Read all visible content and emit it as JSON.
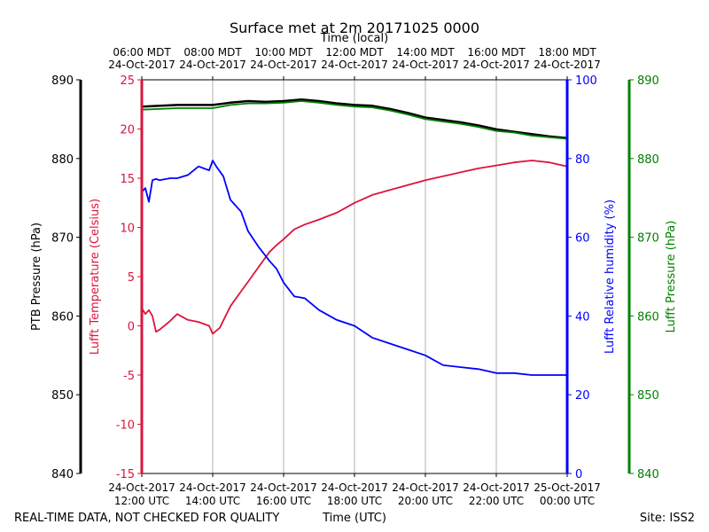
{
  "chart_data": {
    "type": "line",
    "title": "Surface met at 2m 20171025 0000",
    "top_xlabel": "Time (local)",
    "xlabel": "Time (UTC)",
    "footer_left": "REAL-TIME DATA, NOT CHECKED FOR QUALITY",
    "footer_right": "Site: ISS2",
    "x_range_hours_utc": [
      12,
      24
    ],
    "x_ticks_utc": [
      {
        "hour": 12,
        "date": "24-Oct-2017",
        "time": "12:00 UTC"
      },
      {
        "hour": 14,
        "date": "24-Oct-2017",
        "time": "14:00 UTC"
      },
      {
        "hour": 16,
        "date": "24-Oct-2017",
        "time": "16:00 UTC"
      },
      {
        "hour": 18,
        "date": "24-Oct-2017",
        "time": "18:00 UTC"
      },
      {
        "hour": 20,
        "date": "24-Oct-2017",
        "time": "20:00 UTC"
      },
      {
        "hour": 22,
        "date": "24-Oct-2017",
        "time": "22:00 UTC"
      },
      {
        "hour": 24,
        "date": "25-Oct-2017",
        "time": "00:00 UTC"
      }
    ],
    "x_ticks_local": [
      {
        "hour": 12,
        "time": "06:00 MDT",
        "date": "24-Oct-2017"
      },
      {
        "hour": 14,
        "time": "08:00 MDT",
        "date": "24-Oct-2017"
      },
      {
        "hour": 16,
        "time": "10:00 MDT",
        "date": "24-Oct-2017"
      },
      {
        "hour": 18,
        "time": "12:00 MDT",
        "date": "24-Oct-2017"
      },
      {
        "hour": 20,
        "time": "14:00 MDT",
        "date": "24-Oct-2017"
      },
      {
        "hour": 22,
        "time": "16:00 MDT",
        "date": "24-Oct-2017"
      },
      {
        "hour": 24,
        "time": "18:00 MDT",
        "date": "24-Oct-2017"
      }
    ],
    "grid": "vertical",
    "axes": {
      "ptb_pressure": {
        "label": "PTB Pressure (hPa)",
        "range": [
          840,
          890
        ],
        "ticks": [
          840,
          850,
          860,
          870,
          880,
          890
        ],
        "color": "#000000"
      },
      "temperature": {
        "label": "Lufft Temperature (Celsius)",
        "range": [
          -15,
          25
        ],
        "ticks": [
          -15,
          -10,
          -5,
          0,
          5,
          10,
          15,
          20,
          25
        ],
        "color": "#dc143c"
      },
      "humidity": {
        "label": "Lufft Relative humidity (%)",
        "range": [
          0,
          100
        ],
        "ticks": [
          0,
          20,
          40,
          60,
          80,
          100
        ],
        "color": "#0000ff"
      },
      "lufft_pressure": {
        "label": "Lufft Pressure (hPa)",
        "range": [
          840,
          890
        ],
        "ticks": [
          840,
          850,
          860,
          870,
          880,
          890
        ],
        "color": "#008000"
      }
    },
    "series": [
      {
        "axis": "ptb_pressure",
        "color": "#000000",
        "x": [
          12.0,
          13.0,
          14.0,
          14.5,
          15.0,
          15.5,
          16.0,
          16.5,
          17.0,
          17.5,
          18.0,
          18.5,
          19.0,
          19.5,
          20.0,
          20.5,
          21.0,
          21.5,
          22.0,
          22.5,
          23.0,
          23.5,
          24.0
        ],
        "y": [
          886.6,
          886.8,
          886.8,
          887.1,
          887.3,
          887.2,
          887.3,
          887.5,
          887.3,
          887.0,
          886.8,
          886.7,
          886.3,
          885.8,
          885.2,
          884.9,
          884.6,
          884.2,
          883.7,
          883.4,
          883.1,
          882.8,
          882.6
        ]
      },
      {
        "axis": "lufft_pressure",
        "color": "#008000",
        "x": [
          12.0,
          13.0,
          14.0,
          14.5,
          15.0,
          15.5,
          16.0,
          16.5,
          17.0,
          17.5,
          18.0,
          18.5,
          19.0,
          19.5,
          20.0,
          20.5,
          21.0,
          21.5,
          22.0,
          22.5,
          23.0,
          23.5,
          24.0
        ],
        "y": [
          886.2,
          886.4,
          886.4,
          886.8,
          887.0,
          887.0,
          887.1,
          887.3,
          887.1,
          886.8,
          886.6,
          886.5,
          886.1,
          885.6,
          885.0,
          884.7,
          884.4,
          884.0,
          883.5,
          883.3,
          882.9,
          882.7,
          882.5
        ]
      },
      {
        "axis": "temperature",
        "color": "#dc143c",
        "x": [
          12.0,
          12.1,
          12.2,
          12.3,
          12.4,
          12.5,
          12.8,
          13.0,
          13.3,
          13.6,
          13.9,
          14.0,
          14.2,
          14.5,
          14.8,
          15.0,
          15.3,
          15.6,
          15.8,
          16.0,
          16.3,
          16.6,
          17.0,
          17.5,
          18.0,
          18.5,
          19.0,
          19.5,
          20.0,
          20.5,
          21.0,
          21.5,
          22.0,
          22.5,
          23.0,
          23.5,
          24.0
        ],
        "y": [
          1.8,
          1.2,
          1.6,
          1.0,
          -0.6,
          -0.4,
          0.5,
          1.2,
          0.6,
          0.4,
          0.0,
          -0.8,
          -0.2,
          2.0,
          3.5,
          4.5,
          6.0,
          7.5,
          8.2,
          8.8,
          9.8,
          10.3,
          10.8,
          11.5,
          12.5,
          13.3,
          13.8,
          14.3,
          14.8,
          15.2,
          15.6,
          16.0,
          16.3,
          16.6,
          16.8,
          16.6,
          16.2
        ]
      },
      {
        "axis": "humidity",
        "color": "#0000ff",
        "x": [
          12.0,
          12.1,
          12.2,
          12.3,
          12.4,
          12.5,
          12.8,
          13.0,
          13.3,
          13.6,
          13.9,
          14.0,
          14.1,
          14.3,
          14.5,
          14.8,
          15.0,
          15.3,
          15.6,
          15.8,
          16.0,
          16.3,
          16.6,
          17.0,
          17.5,
          18.0,
          18.5,
          19.0,
          19.5,
          20.0,
          20.5,
          21.0,
          21.5,
          22.0,
          22.5,
          23.0,
          23.5,
          24.0
        ],
        "y": [
          71.5,
          72.5,
          69.0,
          74.5,
          74.8,
          74.5,
          75.0,
          75.0,
          75.8,
          78.0,
          77.0,
          79.5,
          78.0,
          75.5,
          69.5,
          66.5,
          61.5,
          57.5,
          54.0,
          52.0,
          48.5,
          45.0,
          44.5,
          41.5,
          39.0,
          37.5,
          34.5,
          33.0,
          31.5,
          30.0,
          27.5,
          27.0,
          26.5,
          25.5,
          25.5,
          25.0,
          25.0,
          25.0
        ]
      }
    ]
  }
}
